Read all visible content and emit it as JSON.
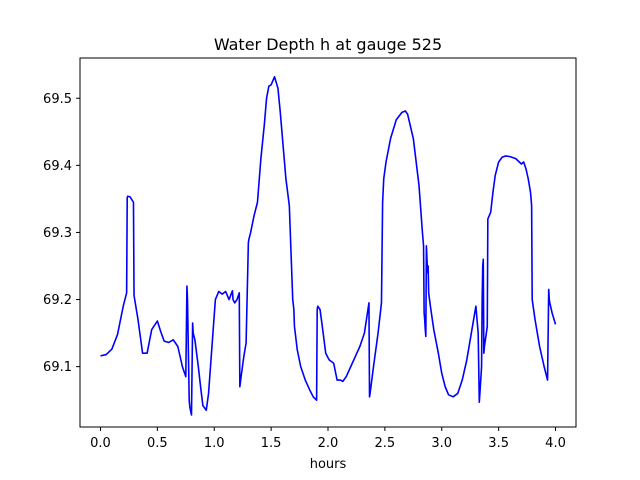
{
  "chart_data": {
    "type": "line",
    "title": "Water Depth h at gauge 525",
    "xlabel": "hours",
    "ylabel": "",
    "xlim": [
      -0.18,
      4.18
    ],
    "ylim": [
      69.01,
      69.56
    ],
    "xticks": [
      0.0,
      0.5,
      1.0,
      1.5,
      2.0,
      2.5,
      3.0,
      3.5,
      4.0
    ],
    "xtick_labels": [
      "0.0",
      "0.5",
      "1.0",
      "1.5",
      "2.0",
      "2.5",
      "3.0",
      "3.5",
      "4.0"
    ],
    "yticks": [
      69.1,
      69.2,
      69.3,
      69.4,
      69.5
    ],
    "ytick_labels": [
      "69.1",
      "69.2",
      "69.3",
      "69.4",
      "69.5"
    ],
    "grid": false,
    "series": [
      {
        "color": "#0000ff",
        "x": [
          0.0,
          0.05,
          0.1,
          0.15,
          0.2,
          0.23,
          0.235,
          0.24,
          0.26,
          0.29,
          0.295,
          0.33,
          0.37,
          0.41,
          0.45,
          0.5,
          0.53,
          0.56,
          0.6,
          0.64,
          0.68,
          0.72,
          0.75,
          0.76,
          0.765,
          0.78,
          0.785,
          0.8,
          0.81,
          0.815,
          0.83,
          0.86,
          0.88,
          0.9,
          0.93,
          0.95,
          0.98,
          1.01,
          1.04,
          1.07,
          1.1,
          1.13,
          1.16,
          1.165,
          1.18,
          1.2,
          1.22,
          1.225,
          1.24,
          1.26,
          1.28,
          1.3,
          1.305,
          1.32,
          1.35,
          1.38,
          1.41,
          1.44,
          1.46,
          1.48,
          1.5,
          1.53,
          1.56,
          1.58,
          1.6,
          1.63,
          1.66,
          1.69,
          1.7,
          1.705,
          1.73,
          1.76,
          1.8,
          1.84,
          1.87,
          1.9,
          1.905,
          1.91,
          1.93,
          1.95,
          1.98,
          2.01,
          2.05,
          2.08,
          2.11,
          2.13,
          2.16,
          2.2,
          2.24,
          2.28,
          2.32,
          2.36,
          2.365,
          2.37,
          2.4,
          2.44,
          2.47,
          2.48,
          2.49,
          2.51,
          2.55,
          2.6,
          2.65,
          2.68,
          2.7,
          2.75,
          2.8,
          2.83,
          2.84,
          2.845,
          2.85,
          2.855,
          2.86,
          2.865,
          2.87,
          2.875,
          2.88,
          2.885,
          2.9,
          2.93,
          2.97,
          3.0,
          3.03,
          3.06,
          3.1,
          3.14,
          3.18,
          3.22,
          3.26,
          3.3,
          3.32,
          3.33,
          3.335,
          3.35,
          3.355,
          3.36,
          3.365,
          3.37,
          3.375,
          3.4,
          3.405,
          3.43,
          3.45,
          3.47,
          3.5,
          3.53,
          3.56,
          3.6,
          3.65,
          3.7,
          3.72,
          3.74,
          3.76,
          3.78,
          3.79,
          3.795,
          3.82,
          3.86,
          3.9,
          3.93,
          3.94,
          3.945,
          3.95,
          3.97,
          4.0
        ],
        "y": [
          69.116,
          69.118,
          69.126,
          69.148,
          69.19,
          69.21,
          69.352,
          69.354,
          69.353,
          69.345,
          69.206,
          69.17,
          69.12,
          69.12,
          69.155,
          69.168,
          69.152,
          69.138,
          69.136,
          69.14,
          69.13,
          69.1,
          69.085,
          69.22,
          69.2,
          69.05,
          69.04,
          69.028,
          69.165,
          69.15,
          69.14,
          69.1,
          69.07,
          69.042,
          69.035,
          69.06,
          69.13,
          69.2,
          69.212,
          69.208,
          69.212,
          69.2,
          69.213,
          69.2,
          69.195,
          69.2,
          69.21,
          69.07,
          69.09,
          69.115,
          69.135,
          69.285,
          69.29,
          69.3,
          69.325,
          69.345,
          69.41,
          69.46,
          69.5,
          69.518,
          69.52,
          69.532,
          69.515,
          69.48,
          69.44,
          69.38,
          69.34,
          69.2,
          69.185,
          69.16,
          69.125,
          69.1,
          69.08,
          69.065,
          69.055,
          69.05,
          69.185,
          69.19,
          69.185,
          69.16,
          69.12,
          69.11,
          69.105,
          69.08,
          69.08,
          69.078,
          69.085,
          69.1,
          69.115,
          69.13,
          69.15,
          69.195,
          69.055,
          69.06,
          69.1,
          69.15,
          69.195,
          69.345,
          69.38,
          69.405,
          69.44,
          69.468,
          69.479,
          69.481,
          69.476,
          69.44,
          69.37,
          69.3,
          69.28,
          69.18,
          69.17,
          69.155,
          69.145,
          69.28,
          69.26,
          69.24,
          69.25,
          69.21,
          69.19,
          69.155,
          69.12,
          69.09,
          69.07,
          69.058,
          69.055,
          69.06,
          69.08,
          69.11,
          69.15,
          69.19,
          69.15,
          69.047,
          69.06,
          69.1,
          69.2,
          69.25,
          69.26,
          69.12,
          69.13,
          69.16,
          69.32,
          69.33,
          69.36,
          69.385,
          69.405,
          69.412,
          69.414,
          69.413,
          69.41,
          69.402,
          69.405,
          69.395,
          69.38,
          69.36,
          69.34,
          69.2,
          69.17,
          69.13,
          69.1,
          69.08,
          69.215,
          69.2,
          69.195,
          69.18,
          69.163
        ]
      }
    ]
  }
}
